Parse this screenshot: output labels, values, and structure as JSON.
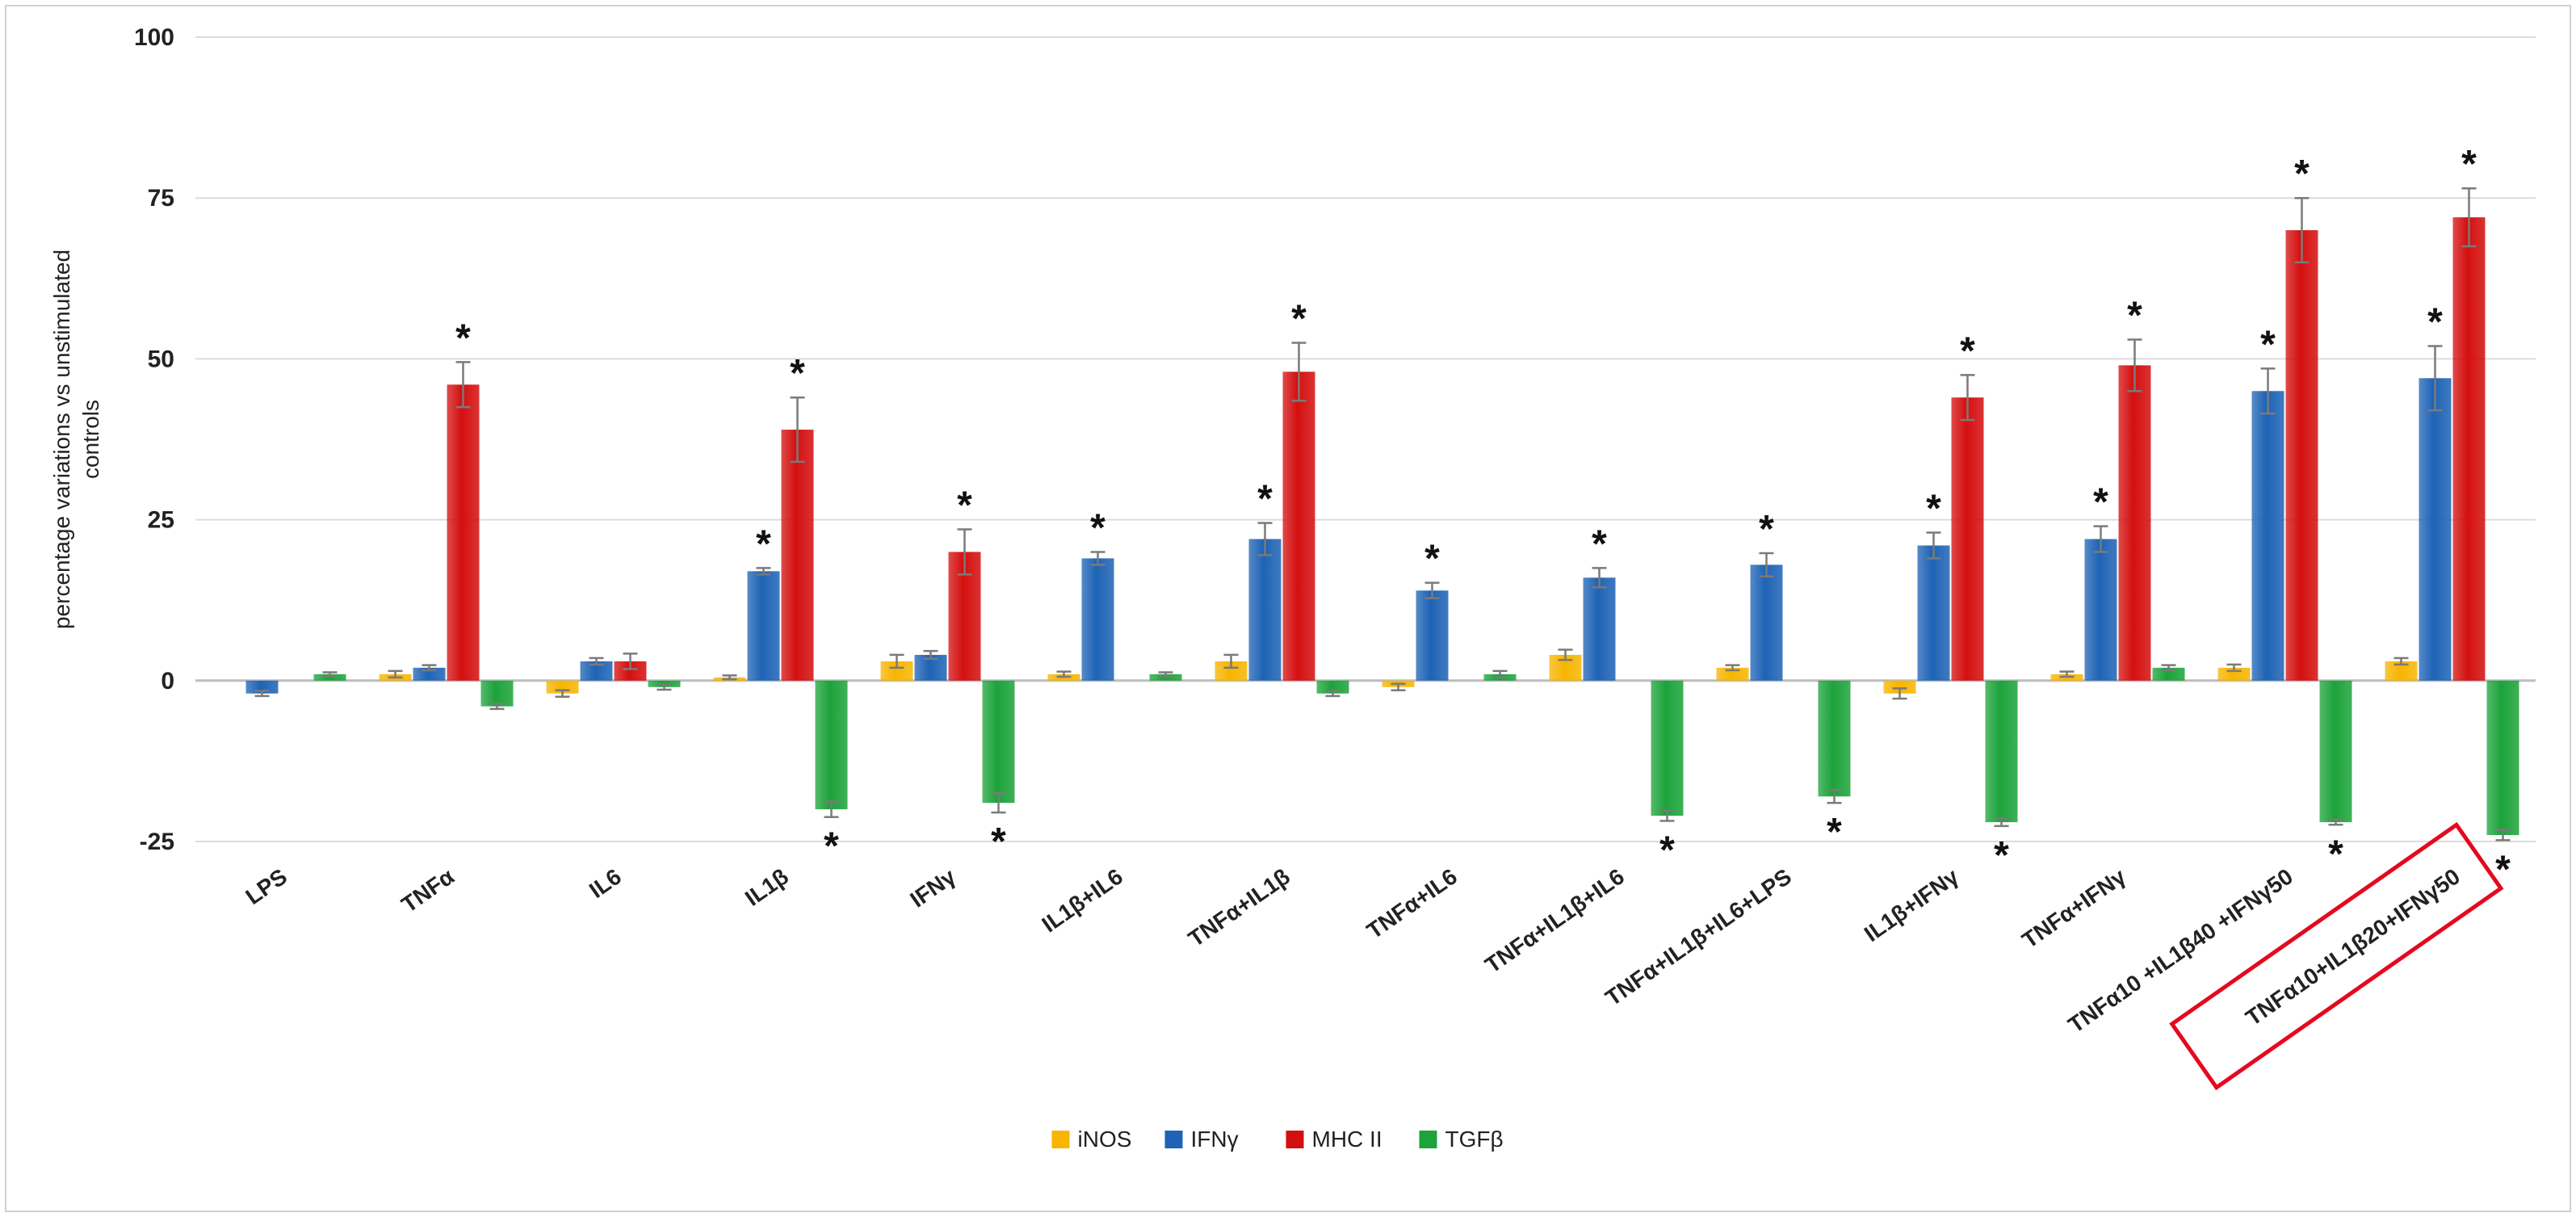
{
  "chart_data": {
    "type": "bar",
    "title": "",
    "xlabel": "",
    "ylabel": "percentage variations vs unstimulated controls",
    "ylim": [
      -25,
      100
    ],
    "yticks": [
      -25,
      0,
      25,
      50,
      75,
      100
    ],
    "grid": true,
    "legend_position": "bottom",
    "highlighted_category": "TNFα10+IL1β20+IFNγ50",
    "categories": [
      "LPS",
      "TNFα",
      "IL6",
      "IL1β",
      "IFNγ",
      "IL1β+IL6",
      "TNFα+IL1β",
      "TNFα+IL6",
      "TNFα+IL1β+IL6",
      "TNFα+IL1β+IL6+LPS",
      "IL1β+IFNγ",
      "TNFα+IFNγ",
      "TNFα10 +IL1β40 +IFNγ50",
      "TNFα10+IL1β20+IFNγ50"
    ],
    "series": [
      {
        "name": "iNOS",
        "color": "#f7b500",
        "values": [
          0,
          1,
          -2,
          0.5,
          3,
          1,
          3,
          -1,
          4,
          2,
          -2,
          1,
          2,
          3
        ],
        "errors": [
          0,
          0.5,
          0.5,
          0.3,
          1,
          0.4,
          1,
          0.5,
          0.8,
          0.4,
          0.8,
          0.4,
          0.5,
          0.5
        ],
        "significant": [
          false,
          false,
          false,
          false,
          false,
          false,
          false,
          false,
          false,
          false,
          false,
          false,
          false,
          false
        ]
      },
      {
        "name": "IFNγ",
        "color": "#1e63b5",
        "values": [
          -2,
          2,
          3,
          17,
          4,
          19,
          22,
          14,
          16,
          18,
          21,
          22,
          45,
          47
        ],
        "errors": [
          0.4,
          0.4,
          0.5,
          0.5,
          0.6,
          1,
          2.5,
          1.2,
          1.5,
          1.8,
          2,
          2,
          3.5,
          5
        ],
        "significant": [
          false,
          false,
          false,
          true,
          false,
          true,
          true,
          true,
          true,
          true,
          true,
          true,
          true,
          true
        ]
      },
      {
        "name": "MHC II",
        "color": "#d40f0f",
        "values": [
          0,
          46,
          3,
          39,
          20,
          0,
          48,
          0,
          0,
          0,
          44,
          49,
          70,
          72
        ],
        "errors": [
          0,
          3.5,
          1.2,
          5,
          3.5,
          0,
          4.5,
          0,
          0,
          0,
          3.5,
          4,
          5,
          4.5
        ],
        "significant": [
          false,
          true,
          false,
          true,
          true,
          false,
          true,
          false,
          false,
          false,
          true,
          true,
          true,
          true
        ]
      },
      {
        "name": "TGFβ",
        "color": "#1ca33a",
        "values": [
          1,
          -4,
          -1,
          -20,
          -19,
          1,
          -2,
          1,
          -21,
          -18,
          -22,
          2,
          -22,
          -24
        ],
        "errors": [
          0.3,
          0.4,
          0.4,
          1.2,
          1.5,
          0.3,
          0.4,
          0.5,
          0.8,
          1,
          0.6,
          0.4,
          0.4,
          0.8
        ],
        "significant": [
          false,
          false,
          false,
          true,
          true,
          false,
          false,
          false,
          true,
          true,
          true,
          false,
          true,
          true
        ]
      }
    ],
    "significance_marker": "*"
  }
}
